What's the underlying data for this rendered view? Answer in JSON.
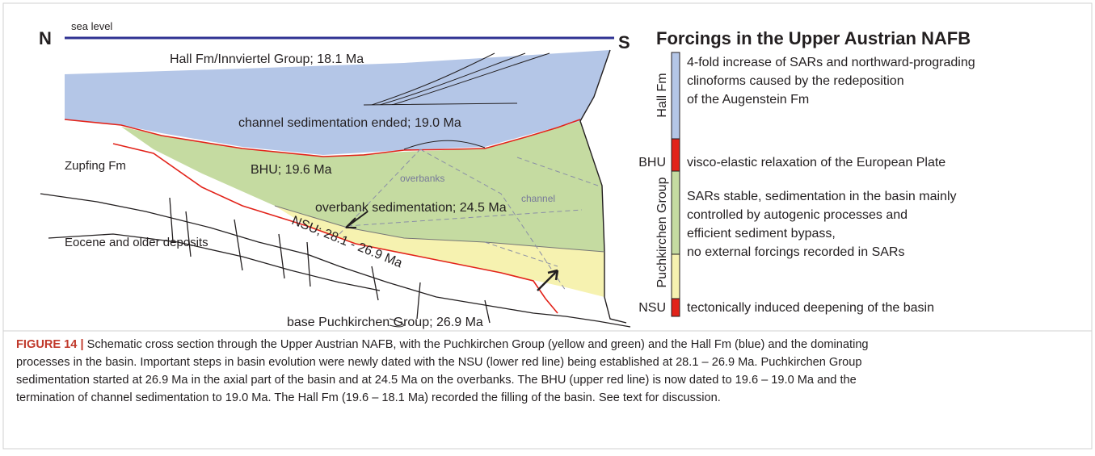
{
  "diagram": {
    "markers": {
      "north": "N",
      "south": "S",
      "sea_level": "sea level"
    },
    "labels": {
      "hall": "Hall Fm/Innviertel Group; 18.1 Ma",
      "channel_ended": "channel sedimentation ended; 19.0 Ma",
      "zupfing": "Zupfing Fm",
      "bhu": "BHU; 19.6 Ma",
      "overbanks": "overbanks",
      "channel": "channel",
      "overbank_sedimentation": "overbank sedimentation; 24.5 Ma",
      "nsu": "NSU; 28.1 - 26.9 Ma",
      "eocene": "Eocene and older deposits",
      "base_puchkirchen": "base Puchkirchen Group; 26.9 Ma"
    }
  },
  "legend": {
    "title": "Forcings in the Upper Austrian NAFB",
    "units": [
      {
        "name": "Hall Fm",
        "description": [
          "4-fold increase of SARs and northward-prograding",
          "clinoforms caused by the redeposition",
          "of the Augenstein Fm"
        ]
      },
      {
        "name": "BHU",
        "description": [
          "visco-elastic relaxation of the European Plate"
        ]
      },
      {
        "name": "Puchkirchen Group",
        "description": [
          "SARs stable, sedimentation in the basin mainly",
          "controlled by autogenic processes and",
          "efficient sediment bypass,",
          "no external forcings recorded in SARs"
        ]
      },
      {
        "name": "NSU",
        "description": [
          "tectonically induced deepening of the basin"
        ]
      }
    ]
  },
  "caption": {
    "label": "FIGURE 14 |",
    "lines": [
      "Schematic cross section through the Upper Austrian NAFB, with the Puchkirchen Group (yellow and green) and the Hall Fm (blue) and the dominating",
      "processes in the basin. Important steps in basin evolution were newly dated with the NSU (lower red line) being established at 28.1 – 26.9 Ma. Puchkirchen Group",
      "sedimentation started at 26.9 Ma in the axial part of the basin and at 24.5 Ma on the overbanks. The BHU (upper red line) is now dated to 19.6 – 19.0 Ma and the",
      "termination of channel sedimentation to 19.0 Ma. The Hall Fm (19.6 – 18.1 Ma) recorded the filling of the basin. See text for discussion."
    ]
  }
}
